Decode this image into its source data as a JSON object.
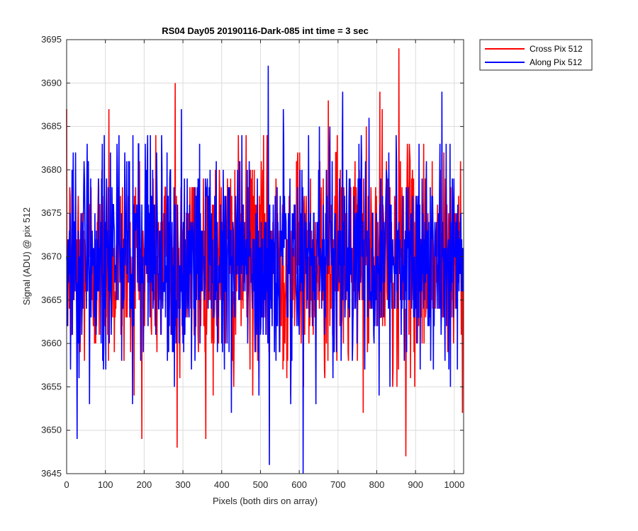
{
  "chart_data": {
    "type": "line",
    "title": "RS04 Day05 20190116-Dark-085 int time = 3 sec",
    "xlabel": "Pixels (both dirs on array)",
    "ylabel": "Signal (ADU) @ pix 512",
    "xlim": [
      0,
      1024
    ],
    "ylim": [
      3645,
      3695
    ],
    "xticks": [
      0,
      100,
      200,
      300,
      400,
      500,
      600,
      700,
      800,
      900,
      1000
    ],
    "yticks": [
      3645,
      3650,
      3655,
      3660,
      3665,
      3670,
      3675,
      3680,
      3685,
      3690,
      3695
    ],
    "grid": true,
    "legend_position": "outside-top-right",
    "series": [
      {
        "name": "Cross Pix 512",
        "color": "#ff0000",
        "summary": {
          "points": 1024,
          "mean": 3669.5,
          "min": 3647,
          "max": 3694
        },
        "peaks": [
          {
            "x": 109,
            "y": 3687
          },
          {
            "x": 280,
            "y": 3690
          },
          {
            "x": 675,
            "y": 3688
          },
          {
            "x": 808,
            "y": 3689
          },
          {
            "x": 857,
            "y": 3694
          },
          {
            "x": 875,
            "y": 3647
          },
          {
            "x": 285,
            "y": 3648
          }
        ]
      },
      {
        "name": "Along Pix 512",
        "color": "#0000ff",
        "summary": {
          "points": 1024,
          "mean": 3669.5,
          "min": 3645,
          "max": 3692
        },
        "peaks": [
          {
            "x": 520,
            "y": 3692
          },
          {
            "x": 610,
            "y": 3645
          },
          {
            "x": 523,
            "y": 3646
          },
          {
            "x": 712,
            "y": 3689
          },
          {
            "x": 968,
            "y": 3689
          },
          {
            "x": 27,
            "y": 3649
          }
        ]
      }
    ]
  }
}
